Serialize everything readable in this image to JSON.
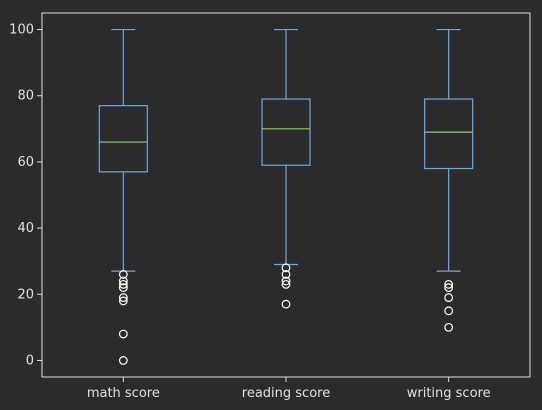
{
  "chart_data": {
    "type": "box",
    "categories": [
      "math score",
      "reading score",
      "writing score"
    ],
    "boxes": [
      {
        "name": "math score",
        "whisker_low": 27,
        "q1": 57,
        "median": 66,
        "q3": 77,
        "whisker_high": 100,
        "outliers": [
          26,
          24,
          23,
          22,
          19,
          18,
          8,
          0
        ]
      },
      {
        "name": "reading score",
        "whisker_low": 29,
        "q1": 59,
        "median": 70,
        "q3": 79,
        "whisker_high": 100,
        "outliers": [
          28,
          26,
          24,
          23,
          17
        ]
      },
      {
        "name": "writing score",
        "whisker_low": 27,
        "q1": 58,
        "median": 69,
        "q3": 79,
        "whisker_high": 100,
        "outliers": [
          23,
          22,
          19,
          15,
          10
        ]
      }
    ],
    "yticks": [
      0,
      20,
      40,
      60,
      80,
      100
    ],
    "ylim": [
      -5,
      105
    ],
    "title": "",
    "xlabel": "",
    "ylabel": "",
    "grid": false,
    "colors": {
      "background": "#2b2b2b",
      "axes": "#e0e0e0",
      "box": "#6fa8dc",
      "median": "#8fd16a",
      "outlier": "#ffffff"
    }
  }
}
